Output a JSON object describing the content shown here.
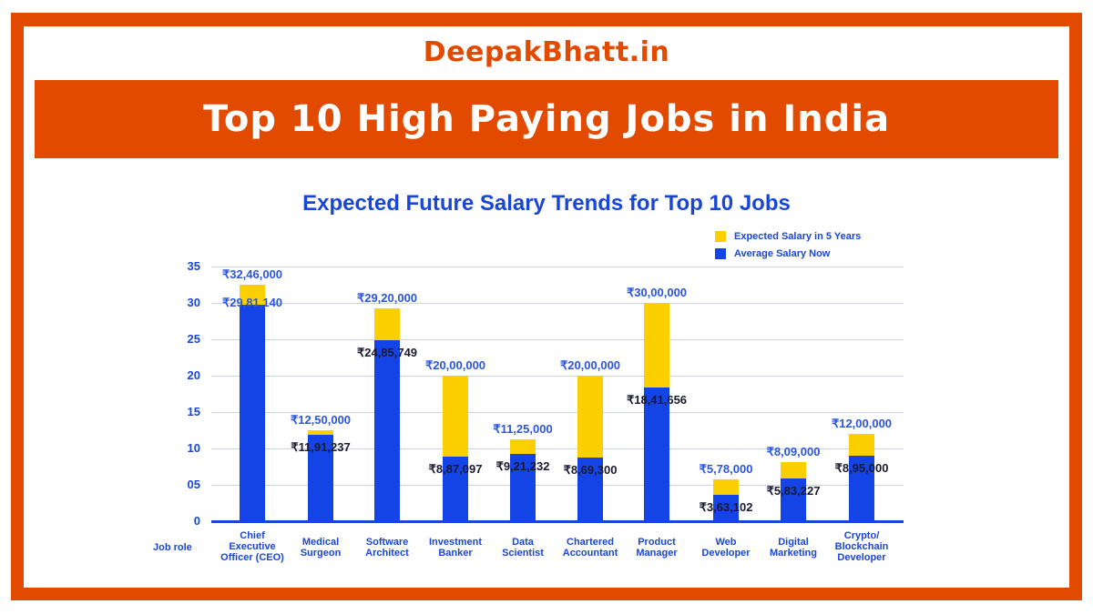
{
  "header": {
    "brand": "DeepakBhatt.in",
    "banner_title": "Top 10 High Paying Jobs in India"
  },
  "colors": {
    "frame": "#e24a00",
    "expected": "#fcd000",
    "now": "#1444e6",
    "text_blue": "#1a46d8"
  },
  "chart_data": {
    "type": "bar",
    "stacked": true,
    "title": "Expected Future Salary Trends for Top 10 Jobs",
    "xlabel": "Job role",
    "ylabel": "",
    "ylim": [
      0,
      35
    ],
    "yticks": [
      "0",
      "05",
      "10",
      "15",
      "20",
      "25",
      "30",
      "35"
    ],
    "grid": true,
    "legend_position": "top-right",
    "legend": [
      "Expected Salary in 5 Years",
      "Average Salary Now"
    ],
    "categories": [
      "Chief Executive Officer (CEO)",
      "Medical Surgeon",
      "Software Architect",
      "Investment Banker",
      "Data Scientist",
      "Chartered Accountant",
      "Product Manager",
      "Web Developer",
      "Digital Marketing",
      "Crypto/ Blockchain Developer"
    ],
    "series": [
      {
        "name": "Average Salary Now",
        "values": [
          2981140,
          1191237,
          2485749,
          887097,
          921232,
          869300,
          1841656,
          363102,
          583227,
          895000
        ],
        "labels": [
          "₹29,81,140",
          "₹11,91,237",
          "₹24,85,749",
          "₹8,87,097",
          "₹9,21,232",
          "₹8,69,300",
          "₹18,41,656",
          "₹3,63,102",
          "₹5,83,227",
          "₹8,95,000"
        ]
      },
      {
        "name": "Expected Salary in 5 Years",
        "values": [
          3246000,
          1250000,
          2920000,
          2000000,
          1125000,
          2000000,
          3000000,
          578000,
          809000,
          1200000
        ],
        "labels": [
          "₹32,46,000",
          "₹12,50,000",
          "₹29,20,000",
          "₹20,00,000",
          "₹11,25,000",
          "₹20,00,000",
          "₹30,00,000",
          "₹5,78,000",
          "₹8,09,000",
          "₹12,00,000"
        ]
      }
    ],
    "units": "lakh INR on y-axis"
  },
  "xlabels": [
    [
      "Chief",
      "Executive",
      "Officer (CEO)"
    ],
    [
      "Medical",
      "Surgeon"
    ],
    [
      "Software",
      "Architect"
    ],
    [
      "Investment",
      "Banker"
    ],
    [
      "Data",
      "Scientist"
    ],
    [
      "Chartered",
      "Accountant"
    ],
    [
      "Product",
      "Manager"
    ],
    [
      "Web",
      "Developer"
    ],
    [
      "Digital",
      "Marketing"
    ],
    [
      "Crypto/",
      "Blockchain",
      "Developer"
    ]
  ]
}
